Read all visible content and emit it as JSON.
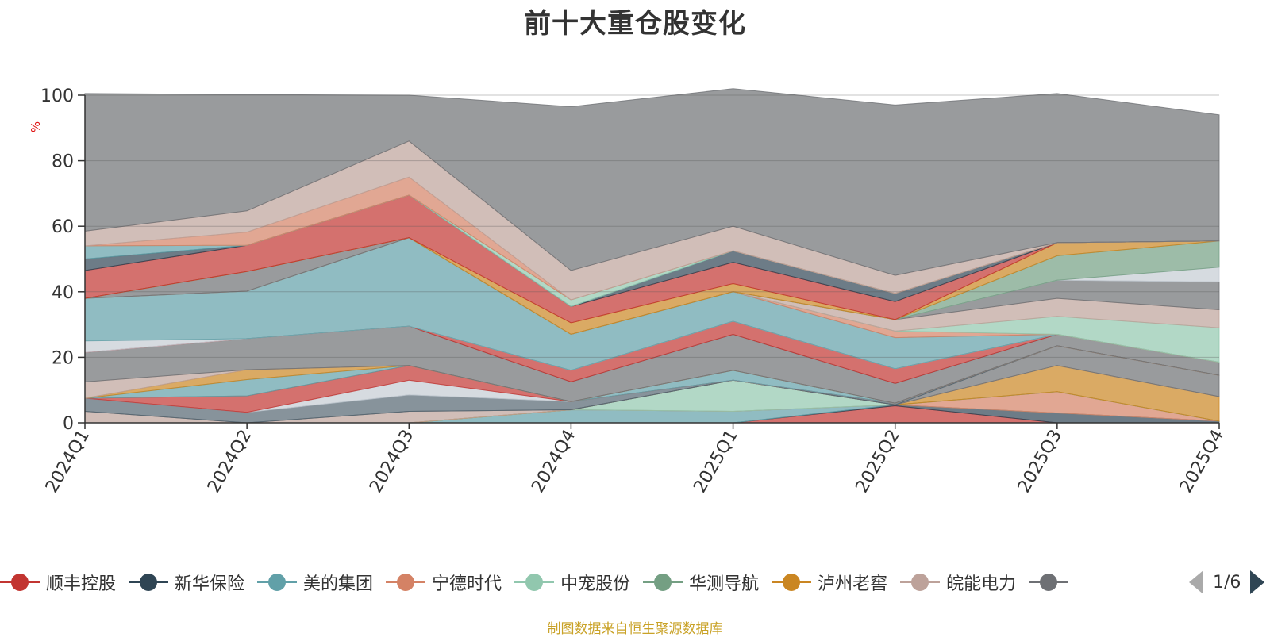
{
  "title": "前十大重仓股变化",
  "source_note": "制图数据来自恒生聚源数据库",
  "legend_page": "1/6",
  "legend_visible": [
    {
      "name": "顺丰控股",
      "color": "#c23531"
    },
    {
      "name": "新华保险",
      "color": "#2f4554"
    },
    {
      "name": "美的集团",
      "color": "#61a0a8"
    },
    {
      "name": "宁德时代",
      "color": "#d48265"
    },
    {
      "name": "中宠股份",
      "color": "#91c7ae"
    },
    {
      "name": "华测导航",
      "color": "#749f83"
    },
    {
      "name": "泸州老窖",
      "color": "#ca8622"
    },
    {
      "name": "皖能电力",
      "color": "#bda29a"
    },
    {
      "name": "",
      "color": "#6e7074"
    }
  ],
  "chart_data": {
    "type": "area",
    "stacked": true,
    "title": "前十大重仓股变化",
    "ylabel": "%",
    "ylim": [
      0,
      100
    ],
    "yticks": [
      0,
      20,
      40,
      60,
      80,
      100
    ],
    "grid": true,
    "categories": [
      "2024Q1",
      "2024Q2",
      "2024Q3",
      "2024Q4",
      "2025Q1",
      "2025Q2",
      "2025Q3",
      "2025Q4"
    ],
    "series": [
      {
        "name": "s1",
        "color": "#c23531",
        "values": [
          0,
          0,
          0,
          0,
          0,
          5.2,
          0,
          0
        ]
      },
      {
        "name": "s2",
        "color": "#2f4554",
        "values": [
          0,
          0,
          0,
          0,
          0,
          0.3,
          3.0,
          0.5
        ]
      },
      {
        "name": "s3",
        "color": "#61a0a8",
        "values": [
          0,
          0,
          0,
          4.0,
          3.5,
          0,
          0,
          0
        ]
      },
      {
        "name": "s4",
        "color": "#d48265",
        "values": [
          0,
          0,
          0,
          0,
          0,
          0,
          6.5,
          0
        ]
      },
      {
        "name": "s5",
        "color": "#91c7ae",
        "values": [
          0,
          0,
          0,
          0,
          9.5,
          0,
          0,
          0
        ]
      },
      {
        "name": "s6",
        "color": "#749f83",
        "values": [
          0,
          0,
          0,
          0,
          0,
          0,
          0,
          0
        ]
      },
      {
        "name": "s7",
        "color": "#ca8622",
        "values": [
          0,
          0,
          0,
          0,
          0,
          0,
          8.0,
          7.5
        ]
      },
      {
        "name": "s8",
        "color": "#bda29a",
        "values": [
          3.5,
          0,
          3.5,
          0,
          0,
          0,
          0,
          0
        ]
      },
      {
        "name": "s9",
        "color": "#6e7074",
        "values": [
          0,
          0,
          0,
          0,
          0,
          0,
          6.0,
          6.5
        ]
      },
      {
        "name": "s10",
        "color": "#546570",
        "values": [
          4.0,
          3.2,
          5.0,
          2.5,
          0,
          0.5,
          0,
          0
        ]
      },
      {
        "name": "s11",
        "color": "#c4ccd3",
        "values": [
          0,
          0,
          4.5,
          0,
          0,
          0,
          0,
          0
        ]
      },
      {
        "name": "s12",
        "color": "#c23531",
        "values": [
          0,
          5.0,
          4.5,
          0,
          0,
          0,
          0,
          0
        ]
      },
      {
        "name": "s13",
        "color": "#61a0a8",
        "values": [
          0,
          5.0,
          0,
          0,
          3.0,
          0,
          0,
          0
        ]
      },
      {
        "name": "s14",
        "color": "#ca8622",
        "values": [
          0,
          3.0,
          0,
          0,
          0,
          0,
          0,
          0
        ]
      },
      {
        "name": "s15",
        "color": "#bda29a",
        "values": [
          5.0,
          0,
          0,
          0,
          0,
          0,
          0,
          0
        ]
      },
      {
        "name": "s16",
        "color": "#6e7074",
        "values": [
          9.0,
          9.5,
          12.0,
          6.0,
          11.0,
          6.0,
          3.5,
          4.0
        ]
      },
      {
        "name": "s17",
        "color": "#c23531",
        "values": [
          0,
          0,
          0,
          3.5,
          4.0,
          4.5,
          0,
          0
        ]
      },
      {
        "name": "s18",
        "color": "#c4ccd3",
        "values": [
          3.5,
          0,
          0,
          0,
          0,
          0,
          0,
          0
        ]
      },
      {
        "name": "s19",
        "color": "#61a0a8",
        "values": [
          13.0,
          14.5,
          27.0,
          11.0,
          9.0,
          9.5,
          0,
          0
        ]
      },
      {
        "name": "s20",
        "color": "#d48265",
        "values": [
          0,
          0,
          0,
          0,
          0,
          2.0,
          0,
          0
        ]
      },
      {
        "name": "s21",
        "color": "#91c7ae",
        "values": [
          0,
          0,
          0,
          0,
          0,
          0,
          5.5,
          10.5
        ]
      },
      {
        "name": "s22",
        "color": "#bda29a",
        "values": [
          0,
          0,
          0,
          0,
          0,
          3.5,
          5.5,
          5.5
        ]
      },
      {
        "name": "s23",
        "color": "#6e7074",
        "values": [
          0,
          6.0,
          0,
          0,
          0,
          0,
          5.5,
          8.5
        ]
      },
      {
        "name": "s24",
        "color": "#c4ccd3",
        "values": [
          0,
          0,
          0,
          0,
          0,
          0,
          0,
          4.5
        ]
      },
      {
        "name": "s25",
        "color": "#749f83",
        "values": [
          0,
          0,
          0,
          0,
          0,
          0,
          7.5,
          8.0
        ]
      },
      {
        "name": "s26",
        "color": "#ca8622",
        "values": [
          0,
          0,
          0,
          3.5,
          2.5,
          0,
          4.0,
          0
        ]
      },
      {
        "name": "s27",
        "color": "#c23531",
        "values": [
          8.5,
          8.0,
          13.0,
          5.0,
          6.5,
          5.5,
          0,
          0
        ]
      },
      {
        "name": "s28",
        "color": "#2f4554",
        "values": [
          3.5,
          0,
          0,
          0,
          3.5,
          2.5,
          0,
          0
        ]
      },
      {
        "name": "s29",
        "color": "#61a0a8",
        "values": [
          4.0,
          0,
          0,
          0,
          0,
          0,
          0,
          0
        ]
      },
      {
        "name": "s30",
        "color": "#91c7ae",
        "values": [
          0,
          0,
          0,
          2.0,
          0,
          0,
          0,
          0
        ]
      },
      {
        "name": "s31",
        "color": "#d48265",
        "values": [
          0,
          4.0,
          5.5,
          0,
          0,
          0,
          0,
          0
        ]
      },
      {
        "name": "s32",
        "color": "#bda29a",
        "values": [
          4.5,
          6.5,
          11.0,
          9.0,
          7.5,
          5.5,
          0,
          0
        ]
      },
      {
        "name": "s33",
        "color": "#6e7074",
        "values": [
          42.0,
          35.5,
          14.0,
          50.0,
          42.0,
          52.0,
          45.5,
          38.5
        ]
      }
    ]
  }
}
